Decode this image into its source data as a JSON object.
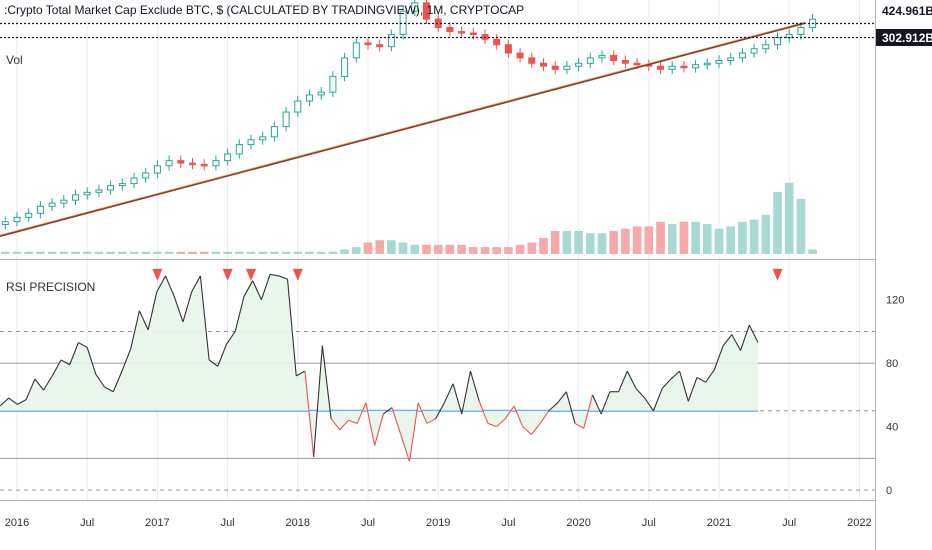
{
  "title": ":Crypto Total Market Cap Exclude BTC, $ (CALCULATED BY TRADINGVIEW), 1M, CRYPTOCAP",
  "volume_label": "Vol",
  "indicator_label": "RSI PRECISION",
  "price_tags": [
    "424.961B",
    "302.912B"
  ],
  "colors": {
    "up": "#26a69a",
    "down": "#ef5350",
    "trendline": "#8b3a2f",
    "rsi_line": "#333333",
    "rsi_fill": "#e8f5e9",
    "rsi_signal": "#ef5350",
    "basis": "#5b9bd5",
    "tag_bg": "#131722",
    "grid": "#e6ecf2"
  },
  "chart_data": [
    {
      "type": "candlestick",
      "title": ":Crypto Total Market Cap Exclude BTC, $ (CALCULATED BY TRADINGVIEW), 1M, CRYPTOCAP",
      "x_ticks": [
        "2016",
        "Jul",
        "2017",
        "Jul",
        "2018",
        "Jul",
        "2019",
        "Jul",
        "2020",
        "Jul",
        "2021",
        "Jul",
        "2022"
      ],
      "log_scale": true,
      "price_labels": [
        "424.961B",
        "302.912B"
      ],
      "candles_close": [
        5.0,
        5.5,
        6.0,
        7.0,
        7.5,
        8.0,
        9.0,
        9.5,
        10.0,
        11.0,
        11.5,
        13.0,
        14.5,
        17.0,
        19.0,
        18.0,
        17.5,
        17.0,
        19.0,
        22.0,
        27.0,
        30.0,
        32.0,
        40.0,
        55.0,
        70.0,
        80.0,
        85.0,
        120.0,
        180.0,
        250.0,
        240.0,
        230.0,
        300.0,
        500.0,
        600.0,
        420.0,
        350.0,
        320.0,
        310.0,
        300.0,
        270.0,
        240.0,
        200.0,
        180.0,
        160.0,
        150.0,
        140.0,
        150.0,
        160.0,
        180.0,
        190.0,
        170.0,
        160.0,
        155.0,
        150.0,
        140.0,
        150.0,
        145.0,
        155.0,
        160.0,
        170.0,
        180.0,
        200.0,
        220.0,
        240.0,
        280.0,
        300.0,
        350.0,
        420.0
      ],
      "trendline": "rising support line from 2015 lows through mid-2021",
      "volume": [
        1,
        1,
        1,
        1,
        1,
        1,
        1,
        1,
        1,
        1,
        1,
        1,
        1,
        1,
        1,
        1,
        1,
        1,
        1,
        1,
        1,
        1,
        1,
        1,
        1,
        1,
        1,
        1,
        1,
        2,
        3,
        5,
        6,
        6,
        5,
        4,
        4,
        4,
        4,
        4,
        3,
        3,
        3,
        3,
        4,
        5,
        7,
        10,
        10,
        10,
        9,
        9,
        10,
        11,
        12,
        12,
        14,
        13,
        14,
        14,
        13,
        11,
        12,
        14,
        15,
        17,
        27,
        31,
        24,
        2
      ]
    },
    {
      "type": "line",
      "title": "RSI PRECISION",
      "x_ticks": [
        "2016",
        "Jul",
        "2017",
        "Jul",
        "2018",
        "Jul",
        "2019",
        "Jul",
        "2020",
        "Jul",
        "2021",
        "Jul",
        "2022"
      ],
      "y_ticks": [
        0,
        40,
        80,
        120
      ],
      "ylim": [
        -5,
        140
      ],
      "reference_lines": [
        0,
        20,
        50,
        80,
        100
      ],
      "series": [
        {
          "values": [
            53,
            58,
            54,
            57,
            70,
            63,
            72,
            82,
            79,
            93,
            90,
            73,
            65,
            62,
            75,
            89,
            113,
            101,
            125,
            135,
            122,
            106,
            125,
            135,
            82,
            78,
            92,
            100,
            122,
            132,
            120,
            136,
            135,
            133,
            72,
            75,
            21,
            91,
            45,
            38,
            44,
            42,
            55,
            28,
            48,
            52,
            35,
            18,
            55,
            42,
            45,
            55,
            67,
            48,
            75,
            56,
            42,
            40,
            45,
            53,
            40,
            35,
            42,
            50,
            55,
            62,
            42,
            39,
            60,
            48,
            62,
            62,
            75,
            64,
            58,
            50,
            64,
            70,
            75,
            56,
            71,
            68,
            76,
            91,
            98,
            88,
            104,
            93
          ]
        }
      ],
      "signals_sell_x": [
        "2017",
        "2017-Jul",
        "2017-Sep",
        "2018",
        "2021-Jun"
      ]
    }
  ]
}
